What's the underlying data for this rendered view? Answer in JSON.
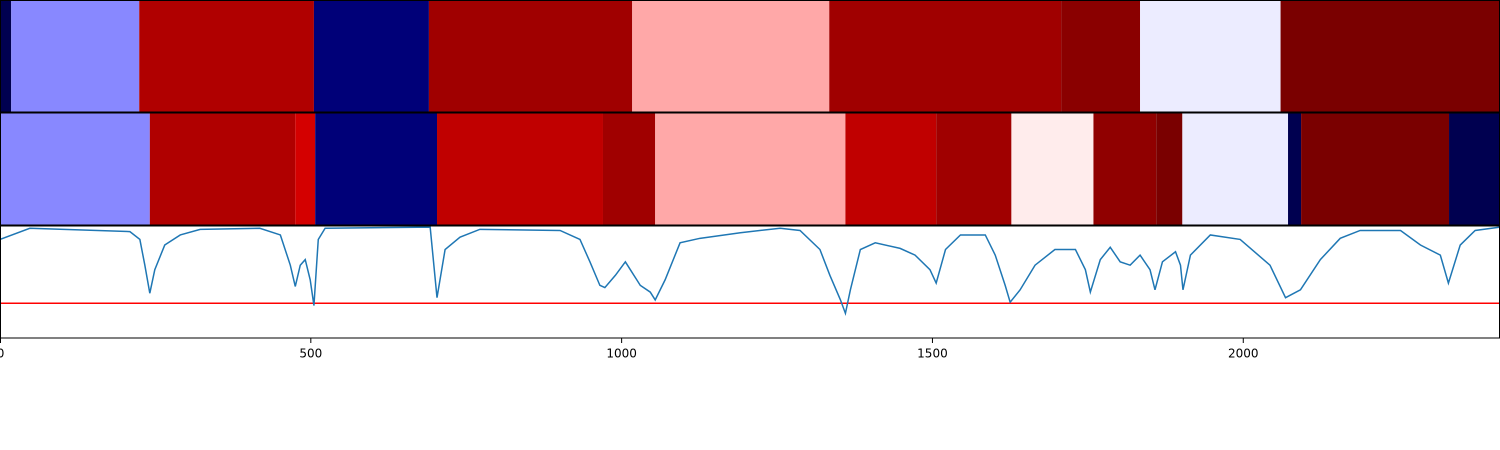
{
  "chart_data": {
    "type": "line",
    "xlim": [
      0,
      2413
    ],
    "xticks": [
      0,
      500,
      1000,
      1500,
      2000
    ],
    "ylim": [
      0,
      1
    ],
    "strips": [
      {
        "edges": [
          0,
          18,
          224,
          505,
          690,
          1017,
          1334,
          1707,
          1834,
          2060,
          2413
        ],
        "colors": [
          "#000050",
          "#8888ff",
          "#b00000",
          "#000078",
          "#a00000",
          "#ffa8a8",
          "#a00000",
          "#8a0000",
          "#ececff",
          "#7a0000"
        ]
      },
      {
        "edges": [
          0,
          241,
          475,
          507,
          703,
          970,
          1054,
          1360,
          1506,
          1627,
          1759,
          1860,
          1902,
          2072,
          2093,
          2331,
          2413
        ],
        "colors": [
          "#8888ff",
          "#b00000",
          "#d40000",
          "#000078",
          "#c00000",
          "#a00000",
          "#ffa8a8",
          "#c00000",
          "#a00000",
          "#ffecec",
          "#900000",
          "#7a0000",
          "#ececff",
          "#000050",
          "#7a0000",
          "#000050"
        ]
      }
    ],
    "x": [
      0,
      48,
      209,
      225,
      233,
      241,
      249,
      265,
      290,
      322,
      418,
      451,
      467,
      475,
      483,
      491,
      499,
      505,
      512,
      523,
      692,
      703,
      716,
      740,
      772,
      901,
      933,
      949,
      965,
      973,
      990,
      1006,
      1014,
      1030,
      1046,
      1054,
      1070,
      1094,
      1126,
      1191,
      1255,
      1287,
      1319,
      1335,
      1352,
      1360,
      1368,
      1384,
      1408,
      1448,
      1472,
      1496,
      1506,
      1521,
      1545,
      1585,
      1601,
      1617,
      1625,
      1641,
      1665,
      1697,
      1730,
      1746,
      1754,
      1770,
      1786,
      1802,
      1818,
      1834,
      1850,
      1858,
      1870,
      1891,
      1899,
      1903,
      1915,
      1947,
      1995,
      2043,
      2068,
      2092,
      2124,
      2156,
      2188,
      2253,
      2285,
      2317,
      2330,
      2349,
      2373,
      2413
    ],
    "series": [
      {
        "color": "#1f77b4",
        "values": [
          0.88,
          0.98,
          0.95,
          0.88,
          0.65,
          0.4,
          0.61,
          0.83,
          0.92,
          0.97,
          0.98,
          0.92,
          0.65,
          0.46,
          0.65,
          0.7,
          0.52,
          0.29,
          0.88,
          0.98,
          0.99,
          0.36,
          0.79,
          0.9,
          0.97,
          0.96,
          0.88,
          0.68,
          0.47,
          0.45,
          0.56,
          0.68,
          0.61,
          0.47,
          0.41,
          0.34,
          0.52,
          0.85,
          0.89,
          0.94,
          0.98,
          0.96,
          0.79,
          0.56,
          0.34,
          0.22,
          0.43,
          0.79,
          0.85,
          0.8,
          0.74,
          0.61,
          0.49,
          0.79,
          0.92,
          0.92,
          0.74,
          0.47,
          0.32,
          0.43,
          0.65,
          0.79,
          0.79,
          0.61,
          0.41,
          0.7,
          0.81,
          0.68,
          0.65,
          0.74,
          0.61,
          0.43,
          0.68,
          0.77,
          0.65,
          0.43,
          0.74,
          0.92,
          0.88,
          0.65,
          0.36,
          0.43,
          0.7,
          0.89,
          0.96,
          0.96,
          0.83,
          0.74,
          0.49,
          0.83,
          0.96,
          0.99
        ]
      }
    ],
    "threshold": {
      "value": 0.31,
      "color": "#ff0000"
    }
  }
}
